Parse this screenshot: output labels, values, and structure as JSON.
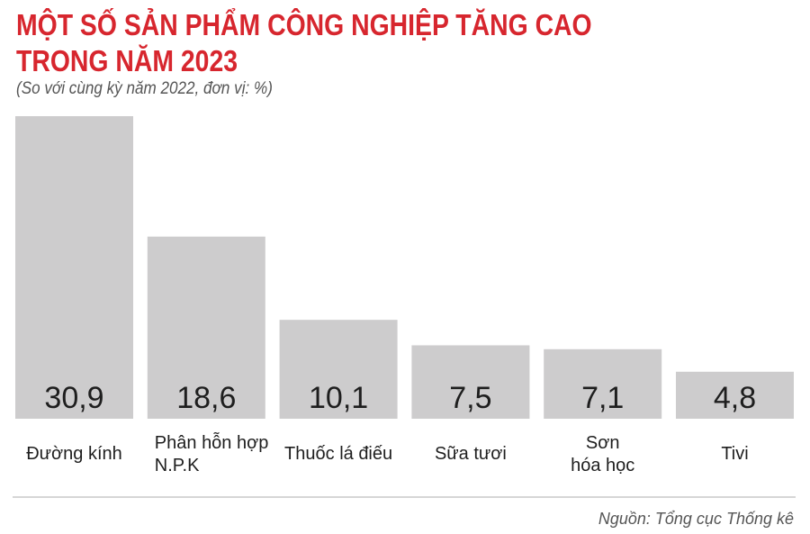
{
  "title_line1": "MỘT SỐ SẢN PHẨM CÔNG NGHIỆP TĂNG CAO",
  "title_line2": "TRONG NĂM 2023",
  "subtitle": "(So với cùng kỳ năm 2022, đơn vị: %)",
  "source": "Nguồn: Tổng cục Thống kê",
  "colors": {
    "title": "#d7262e",
    "bar": "#cdcccd",
    "text": "#1e1e1e",
    "divider": "#c8c8c8"
  },
  "chart_data": {
    "type": "bar",
    "title": "MỘT SỐ SẢN PHẨM CÔNG NGHIỆP TĂNG CAO TRONG NĂM 2023",
    "subtitle": "(So với cùng kỳ năm 2022, đơn vị: %)",
    "categories": [
      [
        "Đường kính"
      ],
      [
        "Phân hỗn hợp",
        "N.P.K"
      ],
      [
        "Thuốc lá điếu"
      ],
      [
        "Sữa tươi"
      ],
      [
        "Sơn",
        "hóa học"
      ],
      [
        "Tivi"
      ]
    ],
    "values": [
      30.9,
      18.6,
      10.1,
      7.5,
      7.1,
      4.8
    ],
    "value_labels": [
      "30,9",
      "18,6",
      "10,1",
      "7,5",
      "7,1",
      "4,8"
    ],
    "ylim": [
      0,
      30.9
    ],
    "grid": false,
    "legend": "none",
    "xlabel": "",
    "ylabel": ""
  }
}
